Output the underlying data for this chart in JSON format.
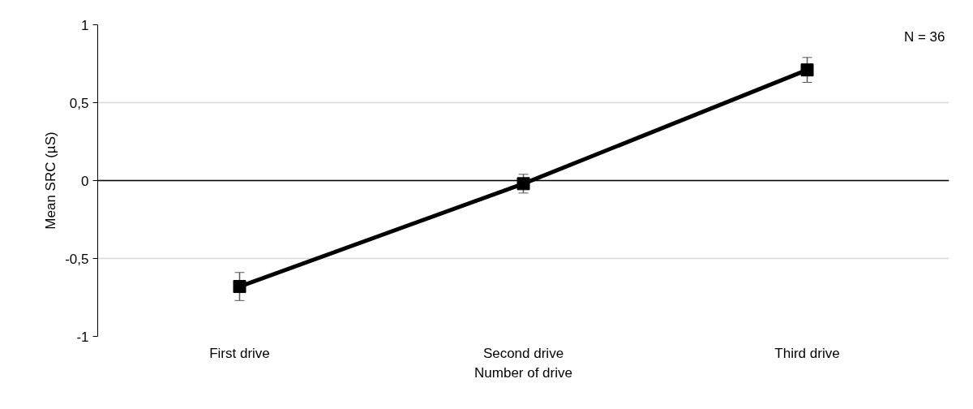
{
  "chart_data": {
    "type": "line",
    "xlabel": "Number of drive",
    "ylabel": "Mean SRC (µS)",
    "categories": [
      "First drive",
      "Second drive",
      "Third drive"
    ],
    "series": [
      {
        "color": "#000000",
        "values": [
          -0.68,
          -0.02,
          0.71
        ],
        "errors": [
          0.09,
          0.06,
          0.08
        ]
      }
    ],
    "ylim": [
      -1,
      1
    ],
    "yticks": [
      -1,
      {
        "value": -0.5,
        "label": "-0,5"
      },
      0,
      {
        "value": 0.5,
        "label": "0,5"
      },
      1
    ],
    "ref_lines": [
      {
        "axis": "y",
        "value": 0,
        "color": "#000000"
      }
    ],
    "annotations": [
      "N = 36"
    ],
    "grid": "y",
    "marker": "square",
    "line_style": "solid"
  }
}
